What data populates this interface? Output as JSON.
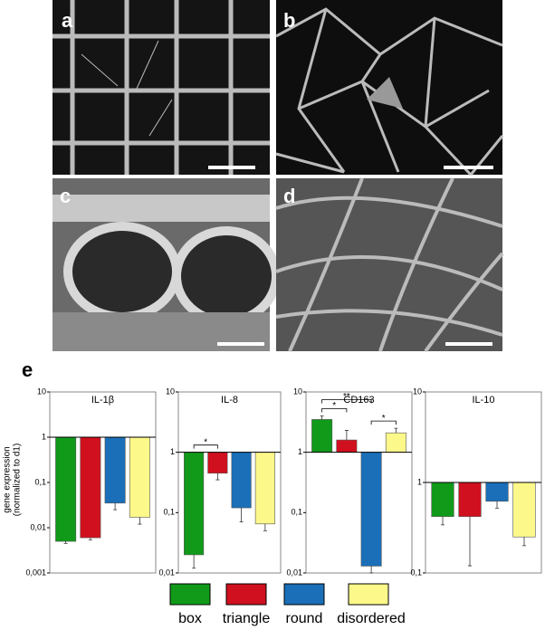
{
  "panels": [
    "a",
    "b",
    "c",
    "d",
    "e"
  ],
  "ylabel": [
    "gene expression",
    "(normalized to d1)"
  ],
  "legend": [
    {
      "name": "box",
      "color": "#119a1a"
    },
    {
      "name": "triangle",
      "color": "#d0101e"
    },
    {
      "name": "round",
      "color": "#1a6fb8"
    },
    {
      "name": "disordered",
      "color": "#fdf88a"
    }
  ],
  "chart_data": [
    {
      "type": "bar",
      "title": "IL-1β",
      "log_scale": true,
      "baseline": 1,
      "ylim": [
        0.001,
        10
      ],
      "yticks": [
        10,
        1,
        {
          "value": 0.1,
          "label": "0,1"
        },
        {
          "value": 0.01,
          "label": "0,01"
        },
        {
          "value": 0.001,
          "label": "0,001"
        }
      ],
      "values": [
        0.005,
        0.006,
        0.035,
        0.017
      ],
      "errors": [
        0.0005,
        0.0006,
        0.01,
        0.005
      ],
      "annotations": []
    },
    {
      "type": "bar",
      "title": "IL-8",
      "log_scale": true,
      "baseline": 1,
      "ylim": [
        0.01,
        10
      ],
      "yticks": [
        10,
        1,
        {
          "value": 0.1,
          "label": "0,1"
        },
        {
          "value": 0.01,
          "label": "0,01"
        }
      ],
      "values": [
        0.02,
        0.45,
        0.12,
        0.065
      ],
      "errors": [
        0.008,
        0.1,
        0.05,
        0.015
      ],
      "annotations": [
        {
          "text": "*",
          "from": 0,
          "to": 1
        }
      ]
    },
    {
      "type": "bar",
      "title": "CD163",
      "log_scale": true,
      "baseline": 1,
      "ylim": [
        0.01,
        10
      ],
      "yticks": [
        10,
        1,
        {
          "value": 0.1,
          "label": "0,1"
        },
        {
          "value": 0.01,
          "label": "0,01"
        }
      ],
      "values": [
        3.5,
        1.6,
        0.013,
        2.1
      ],
      "errors": [
        0.5,
        0.7,
        0.003,
        0.4
      ],
      "annotations": [
        {
          "text": "*",
          "from": 0,
          "to": 1
        },
        {
          "text": "**",
          "from": 0,
          "to": 2
        },
        {
          "text": "*",
          "from": 2,
          "to": 3
        }
      ]
    },
    {
      "type": "bar",
      "title": "IL-10",
      "log_scale": true,
      "baseline": 1,
      "ylim": [
        0.1,
        10
      ],
      "yticks": [
        10,
        1,
        {
          "value": 0.1,
          "label": "0,1"
        }
      ],
      "values": [
        0.42,
        0.42,
        0.62,
        0.25
      ],
      "errors": [
        0.08,
        0.3,
        0.1,
        0.05
      ],
      "annotations": []
    }
  ]
}
